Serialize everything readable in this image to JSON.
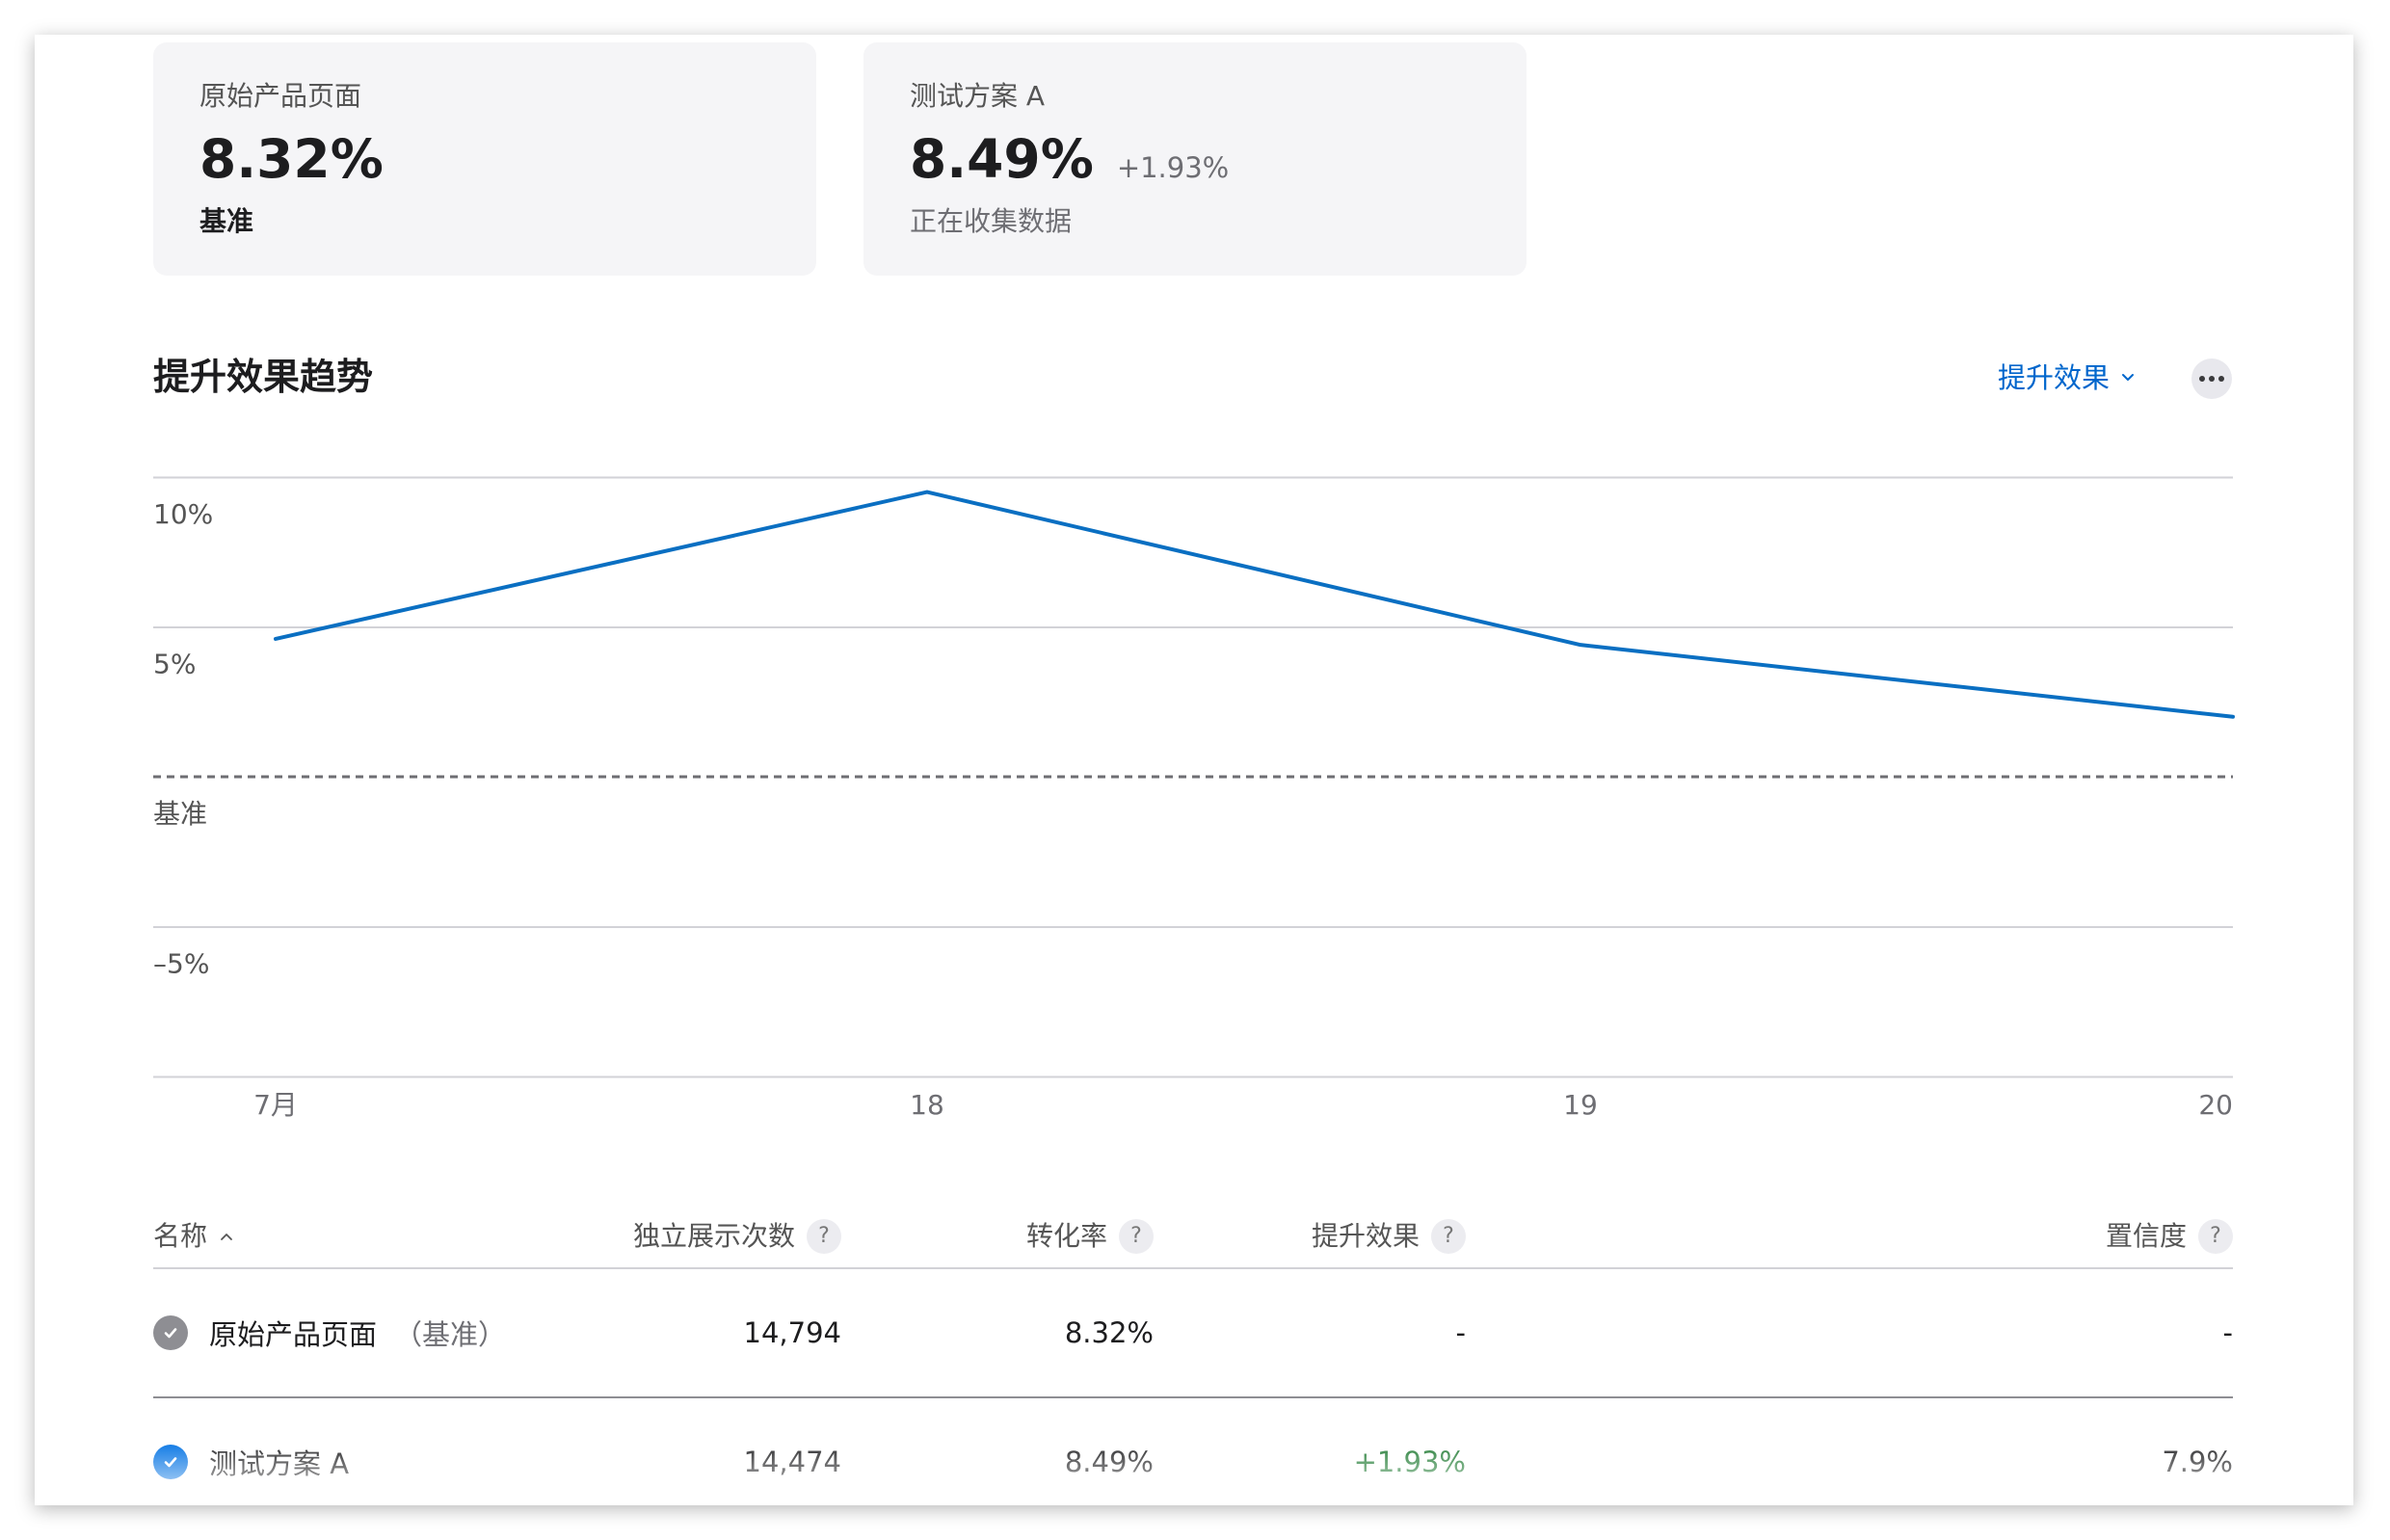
{
  "cards": [
    {
      "label": "原始产品页面",
      "value": "8.32%",
      "delta": "",
      "subtitle": "基准"
    },
    {
      "label": "测试方案 A",
      "value": "8.49%",
      "delta": "+1.93%",
      "subtitle": "正在收集数据"
    }
  ],
  "section": {
    "title": "提升效果趋势",
    "metric_selector": "提升效果",
    "more_icon": "ellipsis-icon"
  },
  "chart_data": {
    "type": "line",
    "x": [
      "7月",
      "18",
      "19",
      "20"
    ],
    "y_ticks": [
      {
        "value": 10,
        "label": "10%"
      },
      {
        "value": 5,
        "label": "5%"
      },
      {
        "value": 0,
        "label": "基准"
      },
      {
        "value": -5,
        "label": "–5%"
      }
    ],
    "ylim": [
      -10,
      10
    ],
    "series": [
      {
        "values": [
          4.6,
          9.5,
          4.4,
          2.0
        ]
      }
    ],
    "baseline": 0,
    "colors": {
      "line": "#0a6fc2",
      "grid": "#d2d2d7",
      "baseline": "#6e6e73"
    }
  },
  "table": {
    "headers": {
      "name": "名称",
      "impressions": "独立展示次数",
      "conversion": "转化率",
      "lift": "提升效果",
      "confidence": "置信度"
    },
    "help_glyph": "?",
    "rows": [
      {
        "name": "原始产品页面",
        "tag": "（基准）",
        "impressions": "14,794",
        "conversion": "8.32%",
        "lift": "-",
        "confidence": "-",
        "selected": false
      },
      {
        "name": "测试方案 A",
        "tag": "",
        "impressions": "14,474",
        "conversion": "8.49%",
        "lift": "+1.93%",
        "confidence": "7.9%",
        "selected": true
      }
    ]
  },
  "colors": {
    "accent": "#0066cc",
    "positive": "#1f7a32",
    "check_selected": "#0071e3",
    "check_default": "#8e8e93"
  }
}
